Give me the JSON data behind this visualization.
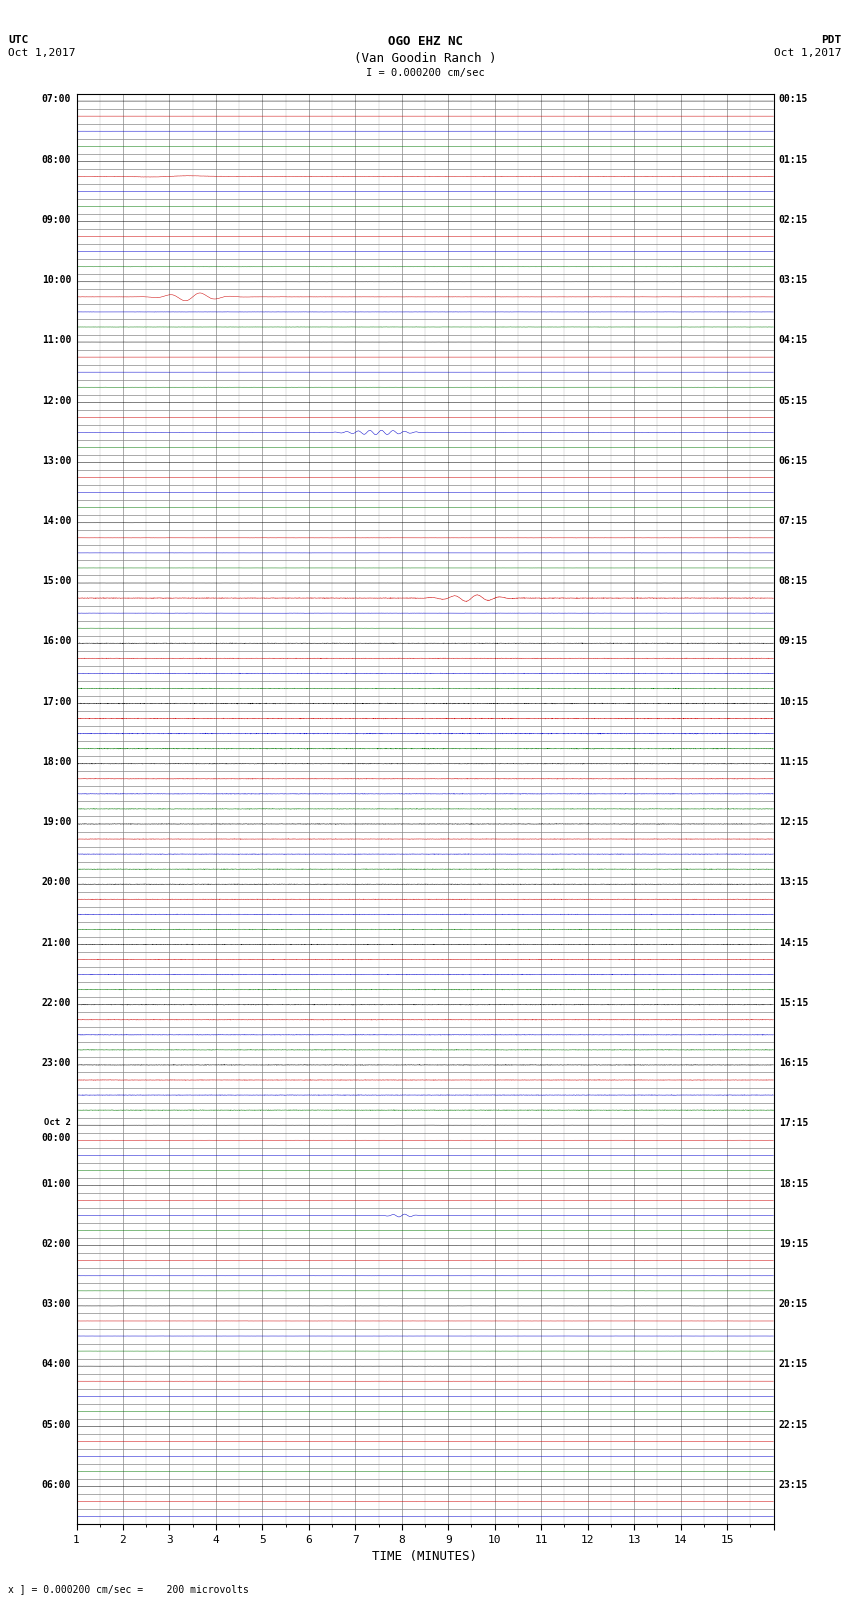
{
  "title_line1": "OGO EHZ NC",
  "title_line2": "(Van Goodin Ranch )",
  "title_line3": "I = 0.000200 cm/sec",
  "left_label_top": "UTC",
  "left_label_date": "Oct 1,2017",
  "right_label_top": "PDT",
  "right_label_date": "Oct 1,2017",
  "xlabel": "TIME (MINUTES)",
  "footer": "x ] = 0.000200 cm/sec =    200 microvolts",
  "bg_color": "#ffffff",
  "grid_color": "#888888",
  "trace_colors": [
    "#000000",
    "#cc0000",
    "#0000cc",
    "#007700"
  ],
  "fig_width": 8.5,
  "fig_height": 16.13,
  "left_times_utc": [
    "07:00",
    "",
    "",
    "",
    "08:00",
    "",
    "",
    "",
    "09:00",
    "",
    "",
    "",
    "10:00",
    "",
    "",
    "",
    "11:00",
    "",
    "",
    "",
    "12:00",
    "",
    "",
    "",
    "13:00",
    "",
    "",
    "",
    "14:00",
    "",
    "",
    "",
    "15:00",
    "",
    "",
    "",
    "16:00",
    "",
    "",
    "",
    "17:00",
    "",
    "",
    "",
    "18:00",
    "",
    "",
    "",
    "19:00",
    "",
    "",
    "",
    "20:00",
    "",
    "",
    "",
    "21:00",
    "",
    "",
    "",
    "22:00",
    "",
    "",
    "",
    "23:00",
    "",
    "",
    "",
    "Oct 2",
    "00:00",
    "",
    "",
    "01:00",
    "",
    "",
    "",
    "02:00",
    "",
    "",
    "",
    "03:00",
    "",
    "",
    "",
    "04:00",
    "",
    "",
    "",
    "05:00",
    "",
    "",
    "",
    "06:00",
    "",
    ""
  ],
  "right_times_pdt": [
    "00:15",
    "",
    "",
    "",
    "01:15",
    "",
    "",
    "",
    "02:15",
    "",
    "",
    "",
    "03:15",
    "",
    "",
    "",
    "04:15",
    "",
    "",
    "",
    "05:15",
    "",
    "",
    "",
    "06:15",
    "",
    "",
    "",
    "07:15",
    "",
    "",
    "",
    "08:15",
    "",
    "",
    "",
    "09:15",
    "",
    "",
    "",
    "10:15",
    "",
    "",
    "",
    "11:15",
    "",
    "",
    "",
    "12:15",
    "",
    "",
    "",
    "13:15",
    "",
    "",
    "",
    "14:15",
    "",
    "",
    "",
    "15:15",
    "",
    "",
    "",
    "16:15",
    "",
    "",
    "",
    "17:15",
    "",
    "",
    "",
    "18:15",
    "",
    "",
    "",
    "19:15",
    "",
    "",
    "",
    "20:15",
    "",
    "",
    "",
    "21:15",
    "",
    "",
    "",
    "22:15",
    "",
    "",
    "",
    "23:15",
    "",
    ""
  ],
  "xmin": 0,
  "xmax": 15,
  "noise_amp_default": 0.018,
  "noise_amp_active": 0.035
}
